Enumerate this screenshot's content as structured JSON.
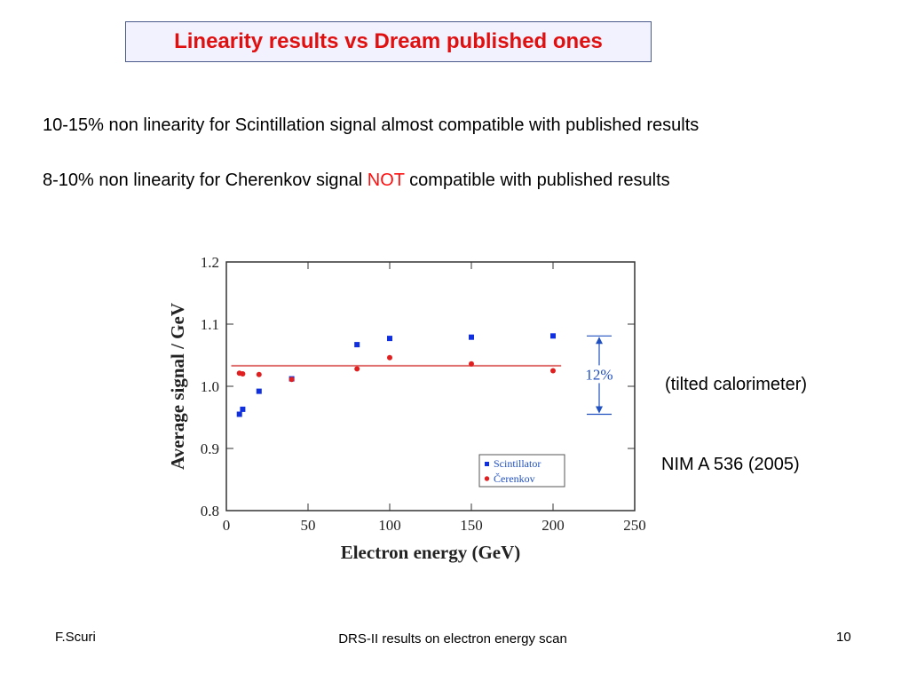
{
  "title": "Linearity results vs Dream published ones",
  "bullets": {
    "line1": "10-15% non linearity for Scintillation signal almost compatible with published results",
    "line2_before": "8-10% non linearity for Cherenkov signal ",
    "line2_highlight": "NOT",
    "line2_after": " compatible with published results"
  },
  "notes": {
    "tilted": "(tilted calorimeter)",
    "reference": "NIM A 536 (2005)"
  },
  "footer": {
    "author": "F.Scuri",
    "subject": "DRS-II results on electron energy scan",
    "page": "10"
  },
  "colors": {
    "title": "#e01010",
    "highlight": "#ff1010",
    "scintillator": "#1030e0",
    "cherenkov": "#e02020",
    "reference_line": "#e07070",
    "annotation": "#2050c0"
  },
  "chart_data": {
    "type": "scatter",
    "xlabel": "Electron energy (GeV)",
    "ylabel": "Average signal / GeV",
    "xlim": [
      0,
      250
    ],
    "ylim": [
      0.8,
      1.2
    ],
    "x_ticks": [
      "0",
      "50",
      "100",
      "150",
      "200",
      "250"
    ],
    "y_ticks": [
      "0.8",
      "0.9",
      "1.0",
      "1.1",
      "1.2"
    ],
    "series": [
      {
        "name": "Scintillator",
        "marker": "square",
        "points": [
          [
            8,
            0.955
          ],
          [
            10,
            0.963
          ],
          [
            20,
            0.992
          ],
          [
            40,
            1.012
          ],
          [
            80,
            1.067
          ],
          [
            100,
            1.077
          ],
          [
            150,
            1.079
          ],
          [
            200,
            1.081
          ]
        ]
      },
      {
        "name": "Čerenkov",
        "marker": "circle",
        "points": [
          [
            8,
            1.021
          ],
          [
            10,
            1.02
          ],
          [
            20,
            1.019
          ],
          [
            40,
            1.011
          ],
          [
            80,
            1.028
          ],
          [
            100,
            1.046
          ],
          [
            150,
            1.036
          ],
          [
            200,
            1.025
          ]
        ]
      }
    ],
    "reference_line": {
      "y": 1.033,
      "x_from": 3,
      "x_to": 205
    },
    "annotation": {
      "label": "12%",
      "y_from": 0.955,
      "y_to": 1.081
    },
    "legend": "bottom-right",
    "grid": false
  }
}
